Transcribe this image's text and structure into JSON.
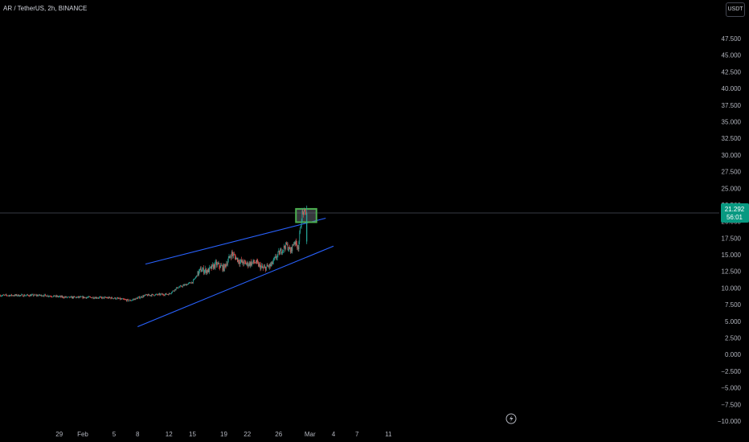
{
  "header": {
    "symbol_title": "AR / TetherUS, 2h, BINANCE",
    "currency_button": "USDT"
  },
  "price_badge": {
    "price": "21.292",
    "countdown": "56:01"
  },
  "colors": {
    "up": "#26a69a",
    "down": "#ef5350",
    "trendline": "#2962ff",
    "highlight_box": "#4caf50",
    "badge_bg": "#089981"
  },
  "chart_data": {
    "type": "candlestick",
    "y_axis": {
      "min": -10,
      "max": 47.5,
      "ticks": [
        "47.500",
        "45.000",
        "42.500",
        "40.000",
        "37.500",
        "35.000",
        "32.500",
        "30.000",
        "27.500",
        "25.000",
        "22.500",
        "20.000",
        "17.500",
        "15.000",
        "12.500",
        "10.000",
        "7.500",
        "5.000",
        "2.500",
        "0.000",
        "−2.500",
        "−5.000",
        "−7.500",
        "−10.000"
      ]
    },
    "x_axis": {
      "ticks": [
        "29",
        "Feb",
        "5",
        "8",
        "12",
        "15",
        "19",
        "22",
        "26",
        "Mar",
        "4",
        "7",
        "11"
      ]
    },
    "price_path": [
      {
        "date": "2024-01-27",
        "close": 8.9
      },
      {
        "date": "2024-01-30",
        "close": 8.6
      },
      {
        "date": "2024-02-02",
        "close": 8.6
      },
      {
        "date": "2024-02-05",
        "close": 8.5
      },
      {
        "date": "2024-02-07",
        "close": 8.1
      },
      {
        "date": "2024-02-09",
        "close": 8.9
      },
      {
        "date": "2024-02-12",
        "close": 9.1
      },
      {
        "date": "2024-02-13",
        "close": 10.0
      },
      {
        "date": "2024-02-15",
        "close": 10.9
      },
      {
        "date": "2024-02-16",
        "close": 12.7
      },
      {
        "date": "2024-02-17",
        "close": 12.6
      },
      {
        "date": "2024-02-18",
        "close": 13.6
      },
      {
        "date": "2024-02-19",
        "close": 13.0
      },
      {
        "date": "2024-02-20",
        "close": 15.2
      },
      {
        "date": "2024-02-21",
        "close": 14.0
      },
      {
        "date": "2024-02-22",
        "close": 13.6
      },
      {
        "date": "2024-02-23",
        "close": 13.9
      },
      {
        "date": "2024-02-24",
        "close": 12.9
      },
      {
        "date": "2024-02-25",
        "close": 13.4
      },
      {
        "date": "2024-02-26",
        "close": 15.2
      },
      {
        "date": "2024-02-27",
        "close": 16.5
      },
      {
        "date": "2024-02-27",
        "close": 15.5
      },
      {
        "date": "2024-02-28",
        "close": 17.0
      },
      {
        "date": "2024-02-28",
        "close": 16.2
      },
      {
        "date": "2024-02-29",
        "close": 21.3
      }
    ],
    "annotations": {
      "upper_trendline": [
        {
          "date": "2024-02-09",
          "price": 13.6
        },
        {
          "date": "2024-03-03",
          "price": 20.5
        }
      ],
      "lower_trendline": [
        {
          "date": "2024-02-08",
          "price": 4.2
        },
        {
          "date": "2024-03-04",
          "price": 16.3
        }
      ],
      "highlight_box": {
        "date_from": "2024-02-28",
        "date_to": "2024-03-01",
        "price_low": 19.9,
        "price_high": 21.9
      },
      "current_price_line": 21.292
    }
  }
}
